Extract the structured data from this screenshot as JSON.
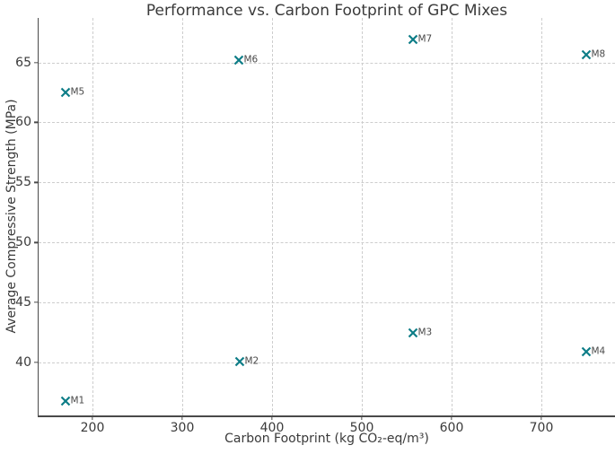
{
  "chart_data": {
    "type": "scatter",
    "title": "Performance vs. Carbon Footprint of GPC Mixes",
    "xlabel": "Carbon Footprint (kg CO₂-eq/m³)",
    "ylabel": "Average Compressive Strength (MPa)",
    "marker": "x",
    "marker_color": "#0d7d87",
    "text_color": "#3a3a3a",
    "grid": true,
    "grid_style": "dashed",
    "legend": "none",
    "xlim": [
      140,
      782
    ],
    "ylim": [
      35.6,
      68.7
    ],
    "xticks": [
      200,
      300,
      400,
      500,
      600,
      700
    ],
    "yticks": [
      40,
      45,
      50,
      55,
      60,
      65
    ],
    "points": [
      {
        "label": "M1",
        "x": 170,
        "y": 36.8
      },
      {
        "label": "M2",
        "x": 364,
        "y": 40.1
      },
      {
        "label": "M3",
        "x": 557,
        "y": 42.5
      },
      {
        "label": "M4",
        "x": 750,
        "y": 40.9
      },
      {
        "label": "M5",
        "x": 170,
        "y": 62.5
      },
      {
        "label": "M6",
        "x": 363,
        "y": 65.2
      },
      {
        "label": "M7",
        "x": 557,
        "y": 66.9
      },
      {
        "label": "M8",
        "x": 750,
        "y": 65.6
      }
    ]
  }
}
